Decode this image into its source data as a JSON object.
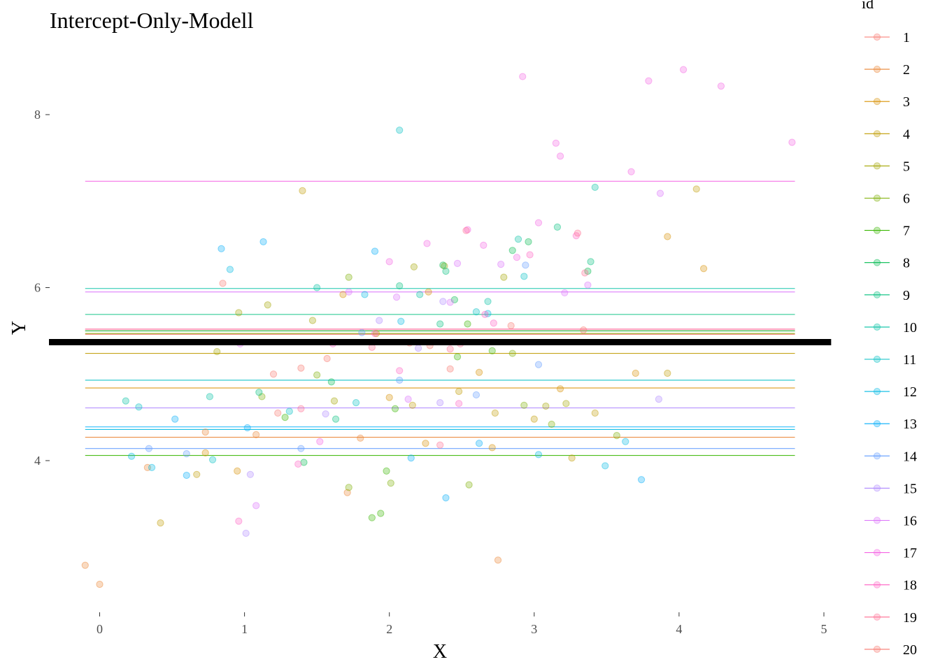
{
  "chart_data": {
    "type": "scatter",
    "title": "Intercept-Only-Modell",
    "xlabel": "X",
    "ylabel": "Y",
    "xlim": [
      -0.15,
      5.05
    ],
    "ylim": [
      2.2,
      8.9
    ],
    "x_ticks": [
      0,
      1,
      2,
      3,
      4,
      5
    ],
    "y_ticks": [
      4,
      6,
      8
    ],
    "grid": false,
    "legend": {
      "title": "id",
      "position": "right",
      "entries": [
        "1",
        "2",
        "3",
        "4",
        "5",
        "6",
        "7",
        "8",
        "9",
        "10",
        "11",
        "12",
        "13",
        "14",
        "15",
        "16",
        "17",
        "18",
        "19",
        "20"
      ]
    },
    "overall_intercept": {
      "value": 5.37,
      "x_range": [
        -0.35,
        5.05
      ],
      "color": "#000000"
    },
    "series": [
      {
        "name": "1",
        "color": "#F8766D",
        "intercept": 5.5,
        "points": [
          [
            0.85,
            6.05
          ],
          [
            1.39,
            5.07
          ],
          [
            1.57,
            5.18
          ],
          [
            1.2,
            5.0
          ]
        ]
      },
      {
        "name": "2",
        "color": "#EA8331",
        "intercept": 4.27,
        "points": [
          [
            -0.1,
            2.79
          ],
          [
            0.0,
            2.57
          ],
          [
            0.33,
            3.92
          ],
          [
            0.73,
            4.33
          ],
          [
            1.08,
            4.3
          ],
          [
            1.71,
            3.63
          ],
          [
            1.8,
            4.26
          ],
          [
            2.75,
            2.85
          ]
        ]
      },
      {
        "name": "3",
        "color": "#D89000",
        "intercept": 4.84,
        "points": [
          [
            0.73,
            4.09
          ],
          [
            0.95,
            3.88
          ],
          [
            1.68,
            5.92
          ],
          [
            2.0,
            4.73
          ],
          [
            2.25,
            4.2
          ],
          [
            2.62,
            5.02
          ],
          [
            2.71,
            4.15
          ],
          [
            3.7,
            5.01
          ],
          [
            3.92,
            6.59
          ],
          [
            4.17,
            6.22
          ],
          [
            3.18,
            4.83
          ],
          [
            2.27,
            5.95
          ]
        ]
      },
      {
        "name": "4",
        "color": "#C09B00",
        "intercept": 5.24,
        "points": [
          [
            0.42,
            3.28
          ],
          [
            0.67,
            3.84
          ],
          [
            1.4,
            7.12
          ],
          [
            1.91,
            5.47
          ],
          [
            2.16,
            4.64
          ],
          [
            3.0,
            4.48
          ],
          [
            3.26,
            4.03
          ],
          [
            4.12,
            7.14
          ],
          [
            3.42,
            4.55
          ],
          [
            3.92,
            5.01
          ],
          [
            2.73,
            4.55
          ],
          [
            2.48,
            4.8
          ]
        ]
      },
      {
        "name": "5",
        "color": "#A3A500",
        "intercept": 5.5,
        "points": [
          [
            0.81,
            5.26
          ],
          [
            0.96,
            5.71
          ],
          [
            1.16,
            5.8
          ],
          [
            1.47,
            5.62
          ],
          [
            1.62,
            4.69
          ],
          [
            2.38,
            6.25
          ],
          [
            2.17,
            6.24
          ],
          [
            2.79,
            6.12
          ],
          [
            3.08,
            4.63
          ],
          [
            3.22,
            4.66
          ]
        ]
      },
      {
        "name": "6",
        "color": "#7CAE00",
        "intercept": 5.47,
        "points": [
          [
            1.12,
            4.74
          ],
          [
            1.5,
            4.99
          ],
          [
            1.72,
            6.12
          ],
          [
            2.01,
            3.74
          ],
          [
            2.55,
            3.72
          ],
          [
            2.85,
            5.24
          ],
          [
            2.93,
            4.64
          ],
          [
            3.12,
            4.42
          ],
          [
            3.57,
            4.29
          ],
          [
            1.72,
            3.69
          ]
        ]
      },
      {
        "name": "7",
        "color": "#39B600",
        "intercept": 4.06,
        "points": [
          [
            1.28,
            4.5
          ],
          [
            1.88,
            3.34
          ],
          [
            1.94,
            3.39
          ],
          [
            1.98,
            3.88
          ],
          [
            2.04,
            4.6
          ],
          [
            2.47,
            5.2
          ],
          [
            2.54,
            5.58
          ],
          [
            2.71,
            5.27
          ]
        ]
      },
      {
        "name": "8",
        "color": "#00BB4E",
        "intercept": 5.5,
        "points": [
          [
            1.41,
            3.98
          ],
          [
            1.6,
            4.91
          ],
          [
            2.37,
            6.26
          ],
          [
            2.85,
            6.43
          ],
          [
            2.96,
            6.53
          ],
          [
            3.37,
            6.19
          ],
          [
            2.45,
            5.86
          ]
        ]
      },
      {
        "name": "9",
        "color": "#00BF7D",
        "intercept": 5.69,
        "points": [
          [
            1.1,
            4.79
          ],
          [
            1.63,
            4.48
          ],
          [
            2.07,
            6.02
          ],
          [
            2.35,
            5.58
          ],
          [
            3.16,
            6.7
          ],
          [
            3.39,
            6.3
          ],
          [
            2.39,
            6.19
          ]
        ]
      },
      {
        "name": "10",
        "color": "#00C1A3",
        "intercept": 5.99,
        "points": [
          [
            0.18,
            4.69
          ],
          [
            0.76,
            4.74
          ],
          [
            1.5,
            6.0
          ],
          [
            2.21,
            5.92
          ],
          [
            2.68,
            5.84
          ],
          [
            3.42,
            7.16
          ],
          [
            2.89,
            6.56
          ]
        ]
      },
      {
        "name": "11",
        "color": "#00BFC4",
        "intercept": 4.93,
        "points": [
          [
            0.27,
            4.62
          ],
          [
            0.78,
            4.01
          ],
          [
            1.31,
            4.57
          ],
          [
            1.77,
            4.67
          ],
          [
            2.07,
            7.82
          ],
          [
            2.6,
            5.72
          ],
          [
            2.93,
            6.13
          ]
        ]
      },
      {
        "name": "12",
        "color": "#00B9E3",
        "intercept": 4.36,
        "points": [
          [
            0.22,
            4.05
          ],
          [
            0.36,
            3.92
          ],
          [
            0.9,
            6.21
          ],
          [
            1.83,
            5.92
          ],
          [
            2.08,
            5.61
          ],
          [
            2.68,
            5.7
          ],
          [
            3.03,
            4.07
          ],
          [
            3.63,
            4.22
          ],
          [
            3.49,
            3.94
          ]
        ]
      },
      {
        "name": "13",
        "color": "#00ADFA",
        "intercept": 4.39,
        "points": [
          [
            0.52,
            4.48
          ],
          [
            0.6,
            3.83
          ],
          [
            0.84,
            6.45
          ],
          [
            1.02,
            4.38
          ],
          [
            1.13,
            6.53
          ],
          [
            1.9,
            6.42
          ],
          [
            2.15,
            4.03
          ],
          [
            2.39,
            3.57
          ],
          [
            2.62,
            4.2
          ],
          [
            3.74,
            3.78
          ]
        ]
      },
      {
        "name": "14",
        "color": "#619CFF",
        "intercept": 4.14,
        "points": [
          [
            0.34,
            4.14
          ],
          [
            0.6,
            4.08
          ],
          [
            1.39,
            4.14
          ],
          [
            1.81,
            5.48
          ],
          [
            2.07,
            4.93
          ],
          [
            2.6,
            4.76
          ],
          [
            2.94,
            6.26
          ],
          [
            3.03,
            5.11
          ]
        ]
      },
      {
        "name": "15",
        "color": "#AE87FF",
        "intercept": 4.61,
        "points": [
          [
            1.01,
            3.16
          ],
          [
            1.04,
            3.84
          ],
          [
            1.56,
            4.54
          ],
          [
            1.93,
            5.62
          ],
          [
            2.35,
            4.67
          ],
          [
            2.37,
            5.84
          ],
          [
            3.86,
            4.71
          ],
          [
            2.2,
            5.3
          ]
        ]
      },
      {
        "name": "16",
        "color": "#DB72FB",
        "intercept": 5.95,
        "points": [
          [
            0.97,
            5.35
          ],
          [
            1.08,
            3.48
          ],
          [
            1.72,
            5.95
          ],
          [
            2.05,
            5.89
          ],
          [
            2.13,
            4.71
          ],
          [
            2.42,
            5.83
          ],
          [
            2.47,
            6.28
          ],
          [
            2.77,
            6.27
          ],
          [
            3.37,
            6.03
          ],
          [
            3.87,
            7.09
          ],
          [
            3.21,
            5.94
          ]
        ]
      },
      {
        "name": "17",
        "color": "#F564E3",
        "intercept": 7.23,
        "points": [
          [
            1.52,
            4.22
          ],
          [
            2.0,
            6.3
          ],
          [
            2.26,
            6.51
          ],
          [
            2.54,
            6.67
          ],
          [
            2.65,
            6.49
          ],
          [
            2.92,
            8.44
          ],
          [
            3.15,
            7.67
          ],
          [
            3.67,
            7.34
          ],
          [
            3.79,
            8.39
          ],
          [
            4.03,
            8.52
          ],
          [
            4.29,
            8.33
          ],
          [
            4.78,
            7.68
          ],
          [
            3.18,
            7.52
          ],
          [
            3.03,
            6.75
          ],
          [
            2.88,
            6.35
          ]
        ]
      },
      {
        "name": "18",
        "color": "#FF61C3",
        "intercept": 5.52,
        "points": [
          [
            0.96,
            3.3
          ],
          [
            1.37,
            3.96
          ],
          [
            1.61,
            5.35
          ],
          [
            1.9,
            5.47
          ],
          [
            2.07,
            5.04
          ],
          [
            2.48,
            4.66
          ],
          [
            2.66,
            5.69
          ],
          [
            2.97,
            6.38
          ],
          [
            3.29,
            6.6
          ],
          [
            2.72,
            5.59
          ]
        ]
      },
      {
        "name": "19",
        "color": "#FF6C91",
        "intercept": 5.52,
        "points": [
          [
            1.39,
            4.6
          ],
          [
            1.88,
            5.31
          ],
          [
            2.35,
            4.18
          ],
          [
            2.49,
            5.35
          ],
          [
            3.35,
            6.17
          ],
          [
            3.3,
            6.63
          ],
          [
            2.53,
            6.66
          ],
          [
            2.42,
            5.29
          ]
        ]
      },
      {
        "name": "20",
        "color": "#F8766D",
        "intercept": 5.46,
        "points": [
          [
            1.23,
            4.55
          ],
          [
            2.28,
            5.33
          ],
          [
            2.42,
            5.06
          ],
          [
            2.84,
            5.56
          ],
          [
            3.34,
            5.51
          ],
          [
            2.14,
            5.36
          ]
        ]
      }
    ]
  }
}
